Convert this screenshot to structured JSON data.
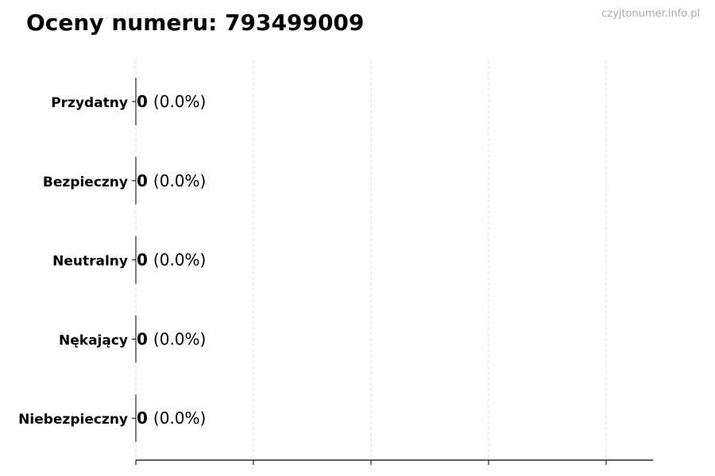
{
  "chart_data": {
    "type": "bar",
    "orientation": "horizontal",
    "title": "Oceny numeru: 793499009",
    "categories": [
      "Przydatny",
      "Bezpieczny",
      "Neutralny",
      "Nękający",
      "Niebezpieczny"
    ],
    "values": [
      0,
      0,
      0,
      0,
      0
    ],
    "data_labels": [
      {
        "count": "0",
        "percent": "(0.0%)"
      },
      {
        "count": "0",
        "percent": "(0.0%)"
      },
      {
        "count": "0",
        "percent": "(0.0%)"
      },
      {
        "count": "0",
        "percent": "(0.0%)"
      },
      {
        "count": "0",
        "percent": "(0.0%)"
      }
    ],
    "xlabel": "",
    "ylabel": "",
    "grid": "vertical dashed",
    "x_tick_labels_shown": false,
    "colors": {
      "grid": "#dddddd",
      "axis": "#000000",
      "text": "#000000",
      "watermark": "#aaaaaa"
    }
  },
  "watermark": "czyjtonumer.info.pl"
}
